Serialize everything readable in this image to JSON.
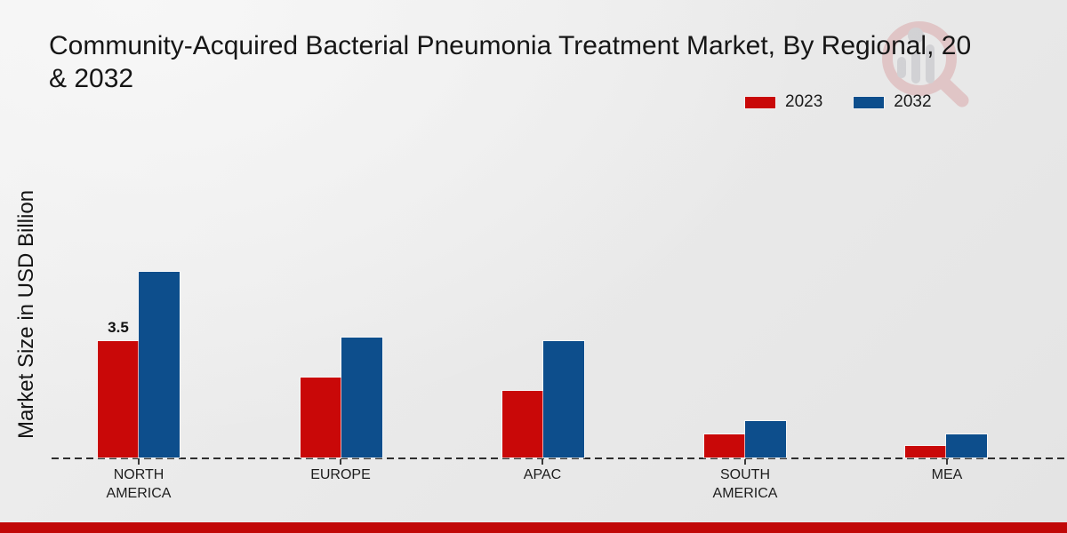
{
  "title": {
    "line1": "Community-Acquired Bacterial Pneumonia Treatment Market, By Regional, 20",
    "line2": "& 2032"
  },
  "y_axis_label": "Market Size in USD Billion",
  "chart_data": {
    "type": "bar",
    "title": "Community-Acquired Bacterial Pneumonia Treatment Market, By Regional, 2023 & 2032",
    "xlabel": "",
    "ylabel": "Market Size in USD Billion",
    "categories": [
      "NORTH AMERICA",
      "EUROPE",
      "APAC",
      "SOUTH AMERICA",
      "MEA"
    ],
    "series": [
      {
        "name": "2023",
        "color": "#c90808",
        "values": [
          3.5,
          2.4,
          2.0,
          0.7,
          0.35
        ]
      },
      {
        "name": "2032",
        "color": "#0d4e8c",
        "values": [
          5.6,
          3.6,
          3.5,
          1.1,
          0.7
        ]
      }
    ],
    "annotations": [
      {
        "text": "3.5",
        "target": "NORTH AMERICA 2023"
      }
    ],
    "unit": "USD Billion",
    "baseline_value": 0,
    "grid": false,
    "axis_style": "dashed zero baseline only, no y ticks",
    "legend_position": "top-right"
  },
  "watermark": {
    "icon_name": "magnifier-chart-logo",
    "pink": "#d9a3a5",
    "gray": "#bcbcc2"
  },
  "footer": {
    "accent_color": "#c10808"
  }
}
